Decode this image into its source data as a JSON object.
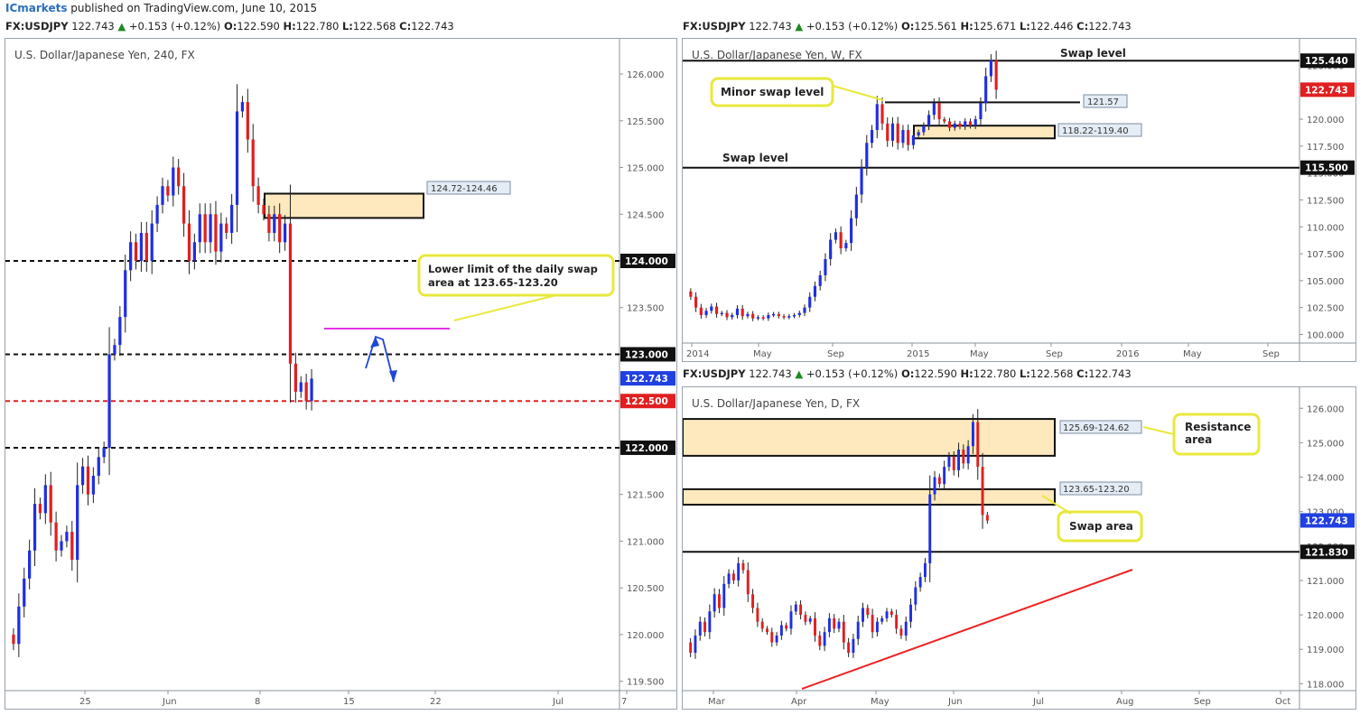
{
  "header": {
    "publisher": "ICmarkets",
    "text": "published on TradingView.com, June 10, 2015"
  },
  "panels": {
    "h4": {
      "quote": {
        "symbol": "FX:USDJPY",
        "last": "122.743",
        "change": "+0.153 (+0.12%)",
        "o": "122.590",
        "h": "122.780",
        "l": "122.568",
        "c": "122.743"
      },
      "title": "U.S. Dollar/Japanese Yen, 240, FX",
      "price_tag": "122.743",
      "zone_label": "124.72-124.46",
      "callout": "Lower limit of the daily swap area at 123.65-123.20",
      "level_labels": [
        "124.000",
        "123.000",
        "122.500",
        "122.000"
      ]
    },
    "weekly": {
      "quote": {
        "symbol": "FX:USDJPY",
        "last": "122.743",
        "change": "+0.153 (+0.12%)",
        "o": "125.561",
        "h": "125.671",
        "l": "122.446",
        "c": "122.743"
      },
      "title": "U.S. Dollar/Japanese Yen, W, FX",
      "price_tag": "122.743",
      "level_labels": [
        "125.440",
        "115.500"
      ],
      "minor_level_label": "121.57",
      "zone_label": "118.22-119.40",
      "annotations": {
        "swap_top": "Swap level",
        "minor": "Minor swap level",
        "swap_bottom": "Swap level"
      }
    },
    "daily": {
      "quote": {
        "symbol": "FX:USDJPY",
        "last": "122.743",
        "change": "+0.153 (+0.12%)",
        "o": "122.590",
        "h": "122.780",
        "l": "122.568",
        "c": "122.743"
      },
      "title": "U.S. Dollar/Japanese Yen, D, FX",
      "price_tag": "122.743",
      "level_labels": [
        "121.830"
      ],
      "zone_labels": [
        "125.69-124.62",
        "123.65-123.20"
      ],
      "annotations": {
        "resistance": "Resistance area",
        "swap_area": "Swap area"
      }
    }
  },
  "chart_data": [
    {
      "type": "candlestick",
      "name_text": "U.S. Dollar/Japanese Yen, 240, FX",
      "ylim": [
        119.4,
        126.3
      ],
      "x_ticks": [
        "25",
        "Jun",
        "8",
        "15",
        "22",
        "Jul",
        "7"
      ],
      "y_ticks": [
        "126.000",
        "125.500",
        "125.000",
        "124.500",
        "124.000",
        "123.500",
        "123.000",
        "122.500",
        "122.000",
        "121.500",
        "121.000",
        "120.500",
        "120.000",
        "119.500"
      ],
      "zones": [
        {
          "label": "124.72-124.46",
          "top": 124.72,
          "bottom": 124.46
        }
      ],
      "levels": [
        124.0,
        123.0,
        122.5,
        122.0
      ],
      "last": 122.743,
      "path": [
        120.0,
        119.9,
        120.3,
        120.6,
        120.9,
        121.4,
        121.3,
        121.6,
        121.2,
        120.9,
        121.0,
        121.1,
        120.8,
        121.6,
        121.8,
        121.5,
        121.7,
        121.9,
        122.0,
        123.0,
        123.1,
        123.4,
        123.9,
        124.2,
        124.0,
        124.3,
        124.0,
        124.4,
        124.6,
        124.8,
        124.7,
        125.0,
        124.8,
        124.4,
        124.0,
        124.2,
        124.5,
        124.2,
        124.5,
        124.1,
        124.4,
        124.3,
        124.6,
        125.6,
        125.7,
        125.3,
        124.8,
        124.6,
        124.5,
        124.3,
        124.5,
        124.2,
        124.4,
        122.9,
        122.6,
        122.7,
        122.5,
        122.74
      ]
    },
    {
      "type": "candlestick",
      "name_text": "U.S. Dollar/Japanese Yen, W, FX",
      "ylim": [
        99.2,
        126.8
      ],
      "x_ticks": [
        "2014",
        "May",
        "Sep",
        "2015",
        "May",
        "Sep",
        "2016",
        "May",
        "Sep"
      ],
      "y_ticks": [
        "125.000",
        "122.500",
        "120.000",
        "117.500",
        "115.000",
        "112.500",
        "110.000",
        "107.500",
        "105.000",
        "102.500",
        "100.000"
      ],
      "zones": [
        {
          "label": "118.22-119.40",
          "top": 119.4,
          "bottom": 118.22
        }
      ],
      "levels": [
        125.44,
        121.57,
        115.5
      ],
      "last": 122.743,
      "path": [
        104.0,
        103.5,
        102.5,
        101.8,
        102.2,
        102.6,
        101.9,
        102.0,
        101.6,
        101.8,
        102.4,
        101.7,
        101.9,
        101.5,
        101.6,
        101.5,
        101.8,
        101.9,
        101.7,
        101.6,
        101.7,
        101.8,
        102.0,
        102.5,
        103.5,
        104.5,
        105.5,
        107.0,
        108.8,
        109.5,
        108.0,
        108.5,
        110.8,
        113.0,
        115.5,
        117.8,
        119.0,
        121.4,
        119.6,
        118.0,
        119.6,
        117.8,
        119.0,
        117.6,
        118.5,
        118.8,
        119.4,
        120.4,
        121.5,
        120.0,
        119.8,
        119.2,
        119.6,
        119.3,
        119.8,
        119.4,
        120.0,
        121.5,
        124.0,
        125.5,
        122.74
      ]
    },
    {
      "type": "candlestick",
      "name_text": "U.S. Dollar/Japanese Yen, D, FX",
      "ylim": [
        117.8,
        126.4
      ],
      "x_ticks": [
        "Mar",
        "Apr",
        "May",
        "Jun",
        "Jul",
        "Aug",
        "Sep",
        "Oct"
      ],
      "y_ticks": [
        "126.000",
        "125.000",
        "124.000",
        "123.000",
        "122.000",
        "121.000",
        "120.000",
        "119.000",
        "118.000"
      ],
      "zones": [
        {
          "label": "125.69-124.62",
          "top": 125.69,
          "bottom": 124.62
        },
        {
          "label": "123.65-123.20",
          "top": 123.65,
          "bottom": 123.2
        }
      ],
      "levels": [
        121.83
      ],
      "last": 122.743,
      "path": [
        119.2,
        118.9,
        119.4,
        119.8,
        119.5,
        120.1,
        120.6,
        120.2,
        120.9,
        121.2,
        121.0,
        121.5,
        121.3,
        120.6,
        120.2,
        119.8,
        119.6,
        119.5,
        119.2,
        119.4,
        119.7,
        119.6,
        120.1,
        120.3,
        120.0,
        119.8,
        119.9,
        119.4,
        119.1,
        119.5,
        119.9,
        119.6,
        119.8,
        119.2,
        118.9,
        119.3,
        119.8,
        120.2,
        120.0,
        119.5,
        119.8,
        119.9,
        120.1,
        120.0,
        119.6,
        119.4,
        119.8,
        120.3,
        120.8,
        121.1,
        121.5,
        123.5,
        124.0,
        123.8,
        124.3,
        124.6,
        124.2,
        124.8,
        124.4,
        124.9,
        125.6,
        124.3,
        122.9,
        122.74
      ]
    }
  ]
}
